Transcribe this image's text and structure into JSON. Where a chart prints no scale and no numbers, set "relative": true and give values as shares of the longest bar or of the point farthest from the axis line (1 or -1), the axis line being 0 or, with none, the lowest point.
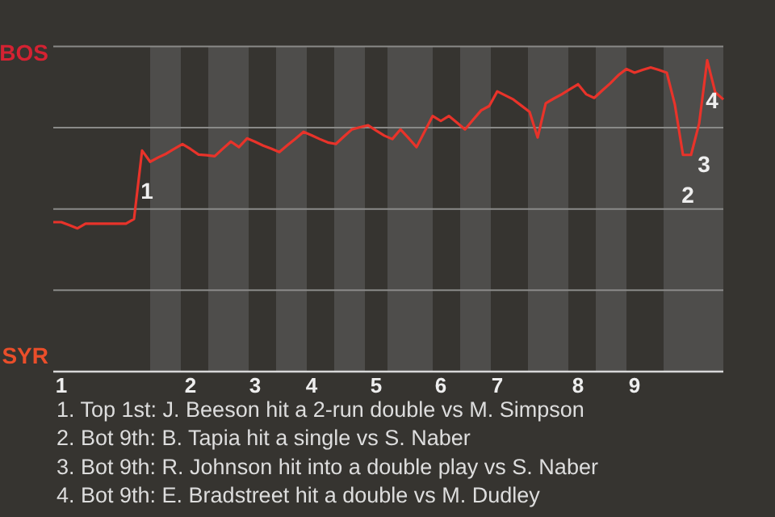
{
  "chart_data": {
    "type": "line",
    "relative": true,
    "categories": [
      null,
      "1",
      null,
      null,
      null,
      null,
      null,
      null,
      null,
      null,
      null,
      null,
      null,
      null,
      null,
      null,
      null,
      "2",
      null,
      null,
      null,
      null,
      null,
      null,
      null,
      "3",
      null,
      null,
      null,
      null,
      null,
      null,
      "4",
      null,
      null,
      null,
      null,
      null,
      null,
      null,
      "5",
      null,
      null,
      null,
      null,
      null,
      null,
      null,
      "6",
      null,
      null,
      null,
      null,
      null,
      null,
      "7",
      null,
      null,
      null,
      null,
      null,
      null,
      null,
      null,
      null,
      "8",
      null,
      null,
      null,
      null,
      null,
      null,
      "9",
      null,
      null,
      null,
      null,
      null,
      null,
      null,
      null,
      null,
      null,
      null
    ],
    "series": [
      {
        "color": "#e8332a",
        "values": [
          0.48,
          0.48,
          0.47,
          0.46,
          0.475,
          0.475,
          0.475,
          0.475,
          0.475,
          0.475,
          0.49,
          0.71,
          0.674,
          0.688,
          0.7,
          0.716,
          0.731,
          0.715,
          0.697,
          0.695,
          0.692,
          0.716,
          0.739,
          0.721,
          0.749,
          0.738,
          0.726,
          0.716,
          0.705,
          0.727,
          0.748,
          0.77,
          0.759,
          0.747,
          0.736,
          0.731,
          0.755,
          0.778,
          0.785,
          0.791,
          0.774,
          0.758,
          0.747,
          0.778,
          0.75,
          0.721,
          0.771,
          0.821,
          0.805,
          0.821,
          0.8,
          0.778,
          0.809,
          0.839,
          0.853,
          0.9,
          0.887,
          0.874,
          0.854,
          0.834,
          0.752,
          0.862,
          0.877,
          0.891,
          0.907,
          0.923,
          0.891,
          0.879,
          0.903,
          0.926,
          0.952,
          0.972,
          0.96,
          0.969,
          0.977,
          0.969,
          0.96,
          0.857,
          0.696,
          0.696,
          0.796,
          1,
          0.897,
          0.874
        ]
      }
    ],
    "grid": "y",
    "marker": "none",
    "line_style": "solid",
    "annotations": [
      "BOS",
      "SYR",
      {
        "text": "1",
        "y": 0.71
      },
      {
        "text": "2",
        "y": 0.696
      },
      {
        "text": "3",
        "y": 0.796
      },
      {
        "text": "4",
        "y": 1
      },
      "1. Top 1st: J. Beeson hit a 2-run double vs M. Simpson",
      "2. Bot 9th: B. Tapia hit a single vs S. Naber",
      "3. Bot 9th: R. Johnson hit into a double play vs S. Naber",
      "4. Bot 9th: E. Bradstreet hit a double vs M. Dudley"
    ]
  }
}
